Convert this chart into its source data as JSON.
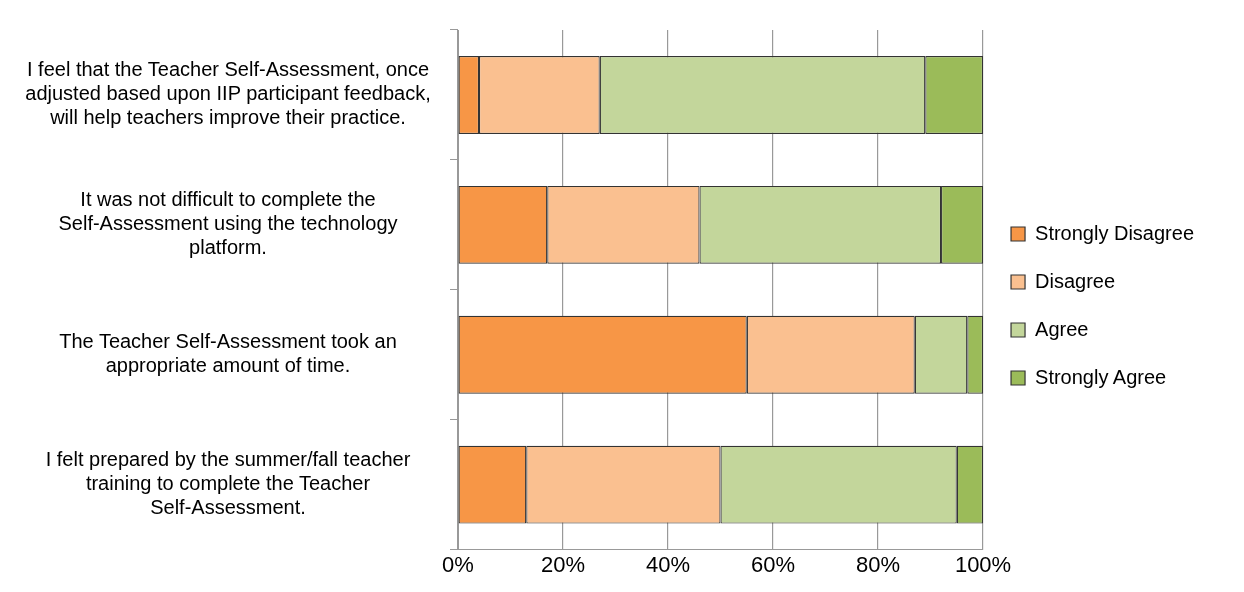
{
  "chart_data": {
    "type": "bar",
    "orientation": "horizontal",
    "stacked": true,
    "categories": [
      "I feel that the Teacher Self-Assessment, once adjusted based upon IIP participant feedback, will help teachers improve their practice.",
      "It was not difficult to complete the Self-Assessment using the technology platform.",
      "The Teacher Self-Assessment took an appropriate amount of time.",
      "I felt prepared by the summer/fall teacher training to complete the Teacher Self-Assessment."
    ],
    "series": [
      {
        "name": "Strongly Disagree",
        "color": "#f79646",
        "values": [
          4,
          17,
          55,
          13
        ]
      },
      {
        "name": "Disagree",
        "color": "#fac090",
        "values": [
          23,
          29,
          32,
          37
        ]
      },
      {
        "name": "Agree",
        "color": "#c3d69b",
        "values": [
          62,
          46,
          10,
          45
        ]
      },
      {
        "name": "Strongly Agree",
        "color": "#9bbb59",
        "values": [
          11,
          8,
          3,
          5
        ]
      }
    ],
    "xlim": [
      0,
      100
    ],
    "xticks": [
      {
        "value": 0,
        "label": "0%"
      },
      {
        "value": 20,
        "label": "20%"
      },
      {
        "value": 40,
        "label": "40%"
      },
      {
        "value": 60,
        "label": "60%"
      },
      {
        "value": 80,
        "label": "80%"
      },
      {
        "value": 100,
        "label": "100%"
      }
    ],
    "grid": "x",
    "legend": "right"
  }
}
